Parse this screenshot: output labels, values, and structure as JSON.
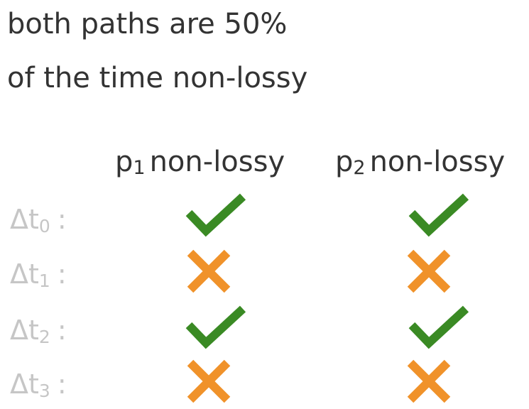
{
  "heading": {
    "line1": "both paths are 50%",
    "line2": "of the time non-lossy"
  },
  "columns": [
    {
      "prefix": "p",
      "sub": "1",
      "label": "non-lossy"
    },
    {
      "prefix": "p",
      "sub": "2",
      "label": "non-lossy"
    }
  ],
  "rows": [
    {
      "prefix": "Δt",
      "sub": "0",
      "colon": ":",
      "p1": "check",
      "p2": "check"
    },
    {
      "prefix": "Δt",
      "sub": "1",
      "colon": ":",
      "p1": "cross",
      "p2": "cross"
    },
    {
      "prefix": "Δt",
      "sub": "2",
      "colon": ":",
      "p1": "check",
      "p2": "check"
    },
    {
      "prefix": "Δt",
      "sub": "3",
      "colon": ":",
      "p1": "cross",
      "p2": "cross"
    }
  ],
  "colors": {
    "check": "#3a8a24",
    "cross": "#f0922a",
    "text": "#333333",
    "label": "#c6c6c6"
  }
}
